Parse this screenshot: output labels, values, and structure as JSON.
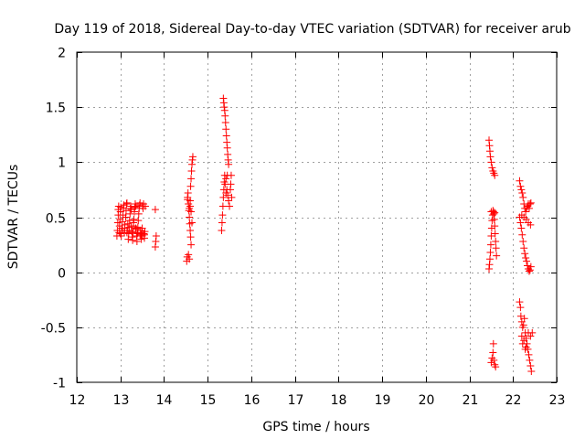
{
  "chart_data": {
    "type": "scatter",
    "title": "Day 119 of 2018, Sidereal Day-to-day VTEC variation (SDTVAR) for receiver arub",
    "xlabel": "GPS time / hours",
    "ylabel": "SDTVAR / TECUs",
    "xlim": [
      12,
      23
    ],
    "ylim": [
      -1,
      2
    ],
    "xticks": [
      12,
      13,
      14,
      15,
      16,
      17,
      18,
      19,
      20,
      21,
      22,
      23
    ],
    "xtick_labels": [
      "12",
      "13",
      "14",
      "15",
      "16",
      "17",
      "18",
      "19",
      "20",
      "21",
      "22",
      "23"
    ],
    "yticks": [
      -1,
      -0.5,
      0,
      0.5,
      1,
      1.5,
      2
    ],
    "ytick_labels": [
      "-1",
      "-0.5",
      "0",
      "0.5",
      "1",
      "1.5",
      "2"
    ],
    "grid": true,
    "marker": "+",
    "color": "#ff0000",
    "series": [
      {
        "name": "SDTVAR",
        "points": [
          [
            12.92,
            0.33
          ],
          [
            12.93,
            0.38
          ],
          [
            12.94,
            0.45
          ],
          [
            12.95,
            0.52
          ],
          [
            12.95,
            0.57
          ],
          [
            12.96,
            0.6
          ],
          [
            12.97,
            0.36
          ],
          [
            12.98,
            0.42
          ],
          [
            12.99,
            0.48
          ],
          [
            13.0,
            0.55
          ],
          [
            13.01,
            0.59
          ],
          [
            13.02,
            0.33
          ],
          [
            13.03,
            0.4
          ],
          [
            13.05,
            0.46
          ],
          [
            13.06,
            0.52
          ],
          [
            13.07,
            0.58
          ],
          [
            13.08,
            0.61
          ],
          [
            13.09,
            0.36
          ],
          [
            13.1,
            0.43
          ],
          [
            13.12,
            0.5
          ],
          [
            13.13,
            0.56
          ],
          [
            13.14,
            0.62
          ],
          [
            13.15,
            0.63
          ],
          [
            13.16,
            0.38
          ],
          [
            13.17,
            0.44
          ],
          [
            13.18,
            0.3
          ],
          [
            13.19,
            0.35
          ],
          [
            13.2,
            0.41
          ],
          [
            13.21,
            0.47
          ],
          [
            13.22,
            0.53
          ],
          [
            13.23,
            0.58
          ],
          [
            13.24,
            0.6
          ],
          [
            13.25,
            0.57
          ],
          [
            13.26,
            0.37
          ],
          [
            13.27,
            0.32
          ],
          [
            13.28,
            0.29
          ],
          [
            13.29,
            0.36
          ],
          [
            13.3,
            0.42
          ],
          [
            13.31,
            0.48
          ],
          [
            13.32,
            0.55
          ],
          [
            13.33,
            0.59
          ],
          [
            13.34,
            0.62
          ],
          [
            13.35,
            0.6
          ],
          [
            13.36,
            0.39
          ],
          [
            13.37,
            0.33
          ],
          [
            13.38,
            0.28
          ],
          [
            13.39,
            0.35
          ],
          [
            13.4,
            0.41
          ],
          [
            13.41,
            0.47
          ],
          [
            13.42,
            0.53
          ],
          [
            13.43,
            0.58
          ],
          [
            13.44,
            0.61
          ],
          [
            13.45,
            0.63
          ],
          [
            13.46,
            0.38
          ],
          [
            13.47,
            0.34
          ],
          [
            13.48,
            0.3
          ],
          [
            13.49,
            0.36
          ],
          [
            13.5,
            0.4
          ],
          [
            13.51,
            0.6
          ],
          [
            13.52,
            0.58
          ],
          [
            13.53,
            0.62
          ],
          [
            13.54,
            0.35
          ],
          [
            13.55,
            0.31
          ],
          [
            13.56,
            0.37
          ],
          [
            13.57,
            0.6
          ],
          [
            13.0,
            0.35
          ],
          [
            13.05,
            0.38
          ],
          [
            13.1,
            0.4
          ],
          [
            13.15,
            0.36
          ],
          [
            13.2,
            0.38
          ],
          [
            13.25,
            0.42
          ],
          [
            13.3,
            0.45
          ],
          [
            13.35,
            0.4
          ],
          [
            13.4,
            0.36
          ],
          [
            13.45,
            0.33
          ],
          [
            13.5,
            0.33
          ],
          [
            13.55,
            0.34
          ],
          [
            13.8,
            0.57
          ],
          [
            13.8,
            0.23
          ],
          [
            13.81,
            0.28
          ],
          [
            13.82,
            0.33
          ],
          [
            14.52,
            0.1
          ],
          [
            14.53,
            0.14
          ],
          [
            14.54,
            0.68
          ],
          [
            14.55,
            0.72
          ],
          [
            14.56,
            0.62
          ],
          [
            14.57,
            0.56
          ],
          [
            14.58,
            0.5
          ],
          [
            14.59,
            0.44
          ],
          [
            14.6,
            0.38
          ],
          [
            14.61,
            0.32
          ],
          [
            14.62,
            0.25
          ],
          [
            14.56,
            0.16
          ],
          [
            14.58,
            0.12
          ],
          [
            14.6,
            0.6
          ],
          [
            14.61,
            0.78
          ],
          [
            14.62,
            0.85
          ],
          [
            14.63,
            0.92
          ],
          [
            14.64,
            0.98
          ],
          [
            14.65,
            1.02
          ],
          [
            14.66,
            1.05
          ],
          [
            14.6,
            0.65
          ],
          [
            14.62,
            0.55
          ],
          [
            14.64,
            0.45
          ],
          [
            14.54,
            0.66
          ],
          [
            14.58,
            0.58
          ],
          [
            15.32,
            0.38
          ],
          [
            15.33,
            0.45
          ],
          [
            15.34,
            0.52
          ],
          [
            15.35,
            0.6
          ],
          [
            15.36,
            0.68
          ],
          [
            15.37,
            0.75
          ],
          [
            15.38,
            0.82
          ],
          [
            15.39,
            0.88
          ],
          [
            15.36,
            1.58
          ],
          [
            15.37,
            1.54
          ],
          [
            15.38,
            1.5
          ],
          [
            15.39,
            1.47
          ],
          [
            15.4,
            1.42
          ],
          [
            15.41,
            1.36
          ],
          [
            15.42,
            1.3
          ],
          [
            15.43,
            1.24
          ],
          [
            15.44,
            1.18
          ],
          [
            15.45,
            1.13
          ],
          [
            15.46,
            1.07
          ],
          [
            15.47,
            1.02
          ],
          [
            15.48,
            0.98
          ],
          [
            15.4,
            0.8
          ],
          [
            15.42,
            0.85
          ],
          [
            15.44,
            0.75
          ],
          [
            15.46,
            0.7
          ],
          [
            15.48,
            0.65
          ],
          [
            15.5,
            0.6
          ],
          [
            15.52,
            0.75
          ],
          [
            15.53,
            0.8
          ],
          [
            15.54,
            0.88
          ],
          [
            15.55,
            0.68
          ],
          [
            15.45,
            0.88
          ],
          [
            15.42,
            0.72
          ],
          [
            21.45,
            1.2
          ],
          [
            21.46,
            1.15
          ],
          [
            21.47,
            1.1
          ],
          [
            21.48,
            1.05
          ],
          [
            21.5,
            1.0
          ],
          [
            21.52,
            0.95
          ],
          [
            21.54,
            0.92
          ],
          [
            21.56,
            0.9
          ],
          [
            21.58,
            0.88
          ],
          [
            21.45,
            0.03
          ],
          [
            21.46,
            0.07
          ],
          [
            21.47,
            0.12
          ],
          [
            21.48,
            0.18
          ],
          [
            21.49,
            0.25
          ],
          [
            21.5,
            0.33
          ],
          [
            21.51,
            0.4
          ],
          [
            21.52,
            0.47
          ],
          [
            21.53,
            0.52
          ],
          [
            21.54,
            0.56
          ],
          [
            21.55,
            0.55
          ],
          [
            21.56,
            0.53
          ],
          [
            21.57,
            0.48
          ],
          [
            21.58,
            0.42
          ],
          [
            21.59,
            0.35
          ],
          [
            21.6,
            0.28
          ],
          [
            21.61,
            0.22
          ],
          [
            21.62,
            0.15
          ],
          [
            21.5,
            0.55
          ],
          [
            21.58,
            0.54
          ],
          [
            21.5,
            -0.82
          ],
          [
            21.52,
            -0.78
          ],
          [
            21.54,
            -0.73
          ],
          [
            21.55,
            -0.65
          ],
          [
            21.56,
            -0.8
          ],
          [
            21.58,
            -0.84
          ],
          [
            21.6,
            -0.86
          ],
          [
            22.15,
            0.83
          ],
          [
            22.17,
            0.78
          ],
          [
            22.19,
            0.75
          ],
          [
            22.21,
            0.72
          ],
          [
            22.23,
            0.68
          ],
          [
            22.25,
            0.62
          ],
          [
            22.27,
            0.58
          ],
          [
            22.29,
            0.55
          ],
          [
            22.31,
            0.58
          ],
          [
            22.33,
            0.6
          ],
          [
            22.35,
            0.62
          ],
          [
            22.37,
            0.58
          ],
          [
            22.39,
            0.62
          ],
          [
            22.41,
            0.63
          ],
          [
            22.15,
            0.5
          ],
          [
            22.17,
            0.45
          ],
          [
            22.19,
            0.4
          ],
          [
            22.21,
            0.34
          ],
          [
            22.23,
            0.28
          ],
          [
            22.25,
            0.22
          ],
          [
            22.27,
            0.17
          ],
          [
            22.29,
            0.13
          ],
          [
            22.31,
            0.1
          ],
          [
            22.33,
            0.06
          ],
          [
            22.35,
            0.03
          ],
          [
            22.37,
            0.01
          ],
          [
            22.39,
            0.02
          ],
          [
            22.41,
            0.05
          ],
          [
            22.2,
            0.52
          ],
          [
            22.25,
            0.5
          ],
          [
            22.3,
            0.48
          ],
          [
            22.35,
            0.45
          ],
          [
            22.4,
            0.43
          ],
          [
            22.15,
            -0.27
          ],
          [
            22.17,
            -0.32
          ],
          [
            22.18,
            -0.4
          ],
          [
            22.2,
            -0.45
          ],
          [
            22.22,
            -0.5
          ],
          [
            22.24,
            -0.48
          ],
          [
            22.26,
            -0.42
          ],
          [
            22.28,
            -0.55
          ],
          [
            22.3,
            -0.6
          ],
          [
            22.32,
            -0.65
          ],
          [
            22.34,
            -0.7
          ],
          [
            22.36,
            -0.75
          ],
          [
            22.38,
            -0.8
          ],
          [
            22.4,
            -0.85
          ],
          [
            22.42,
            -0.9
          ],
          [
            22.2,
            -0.58
          ],
          [
            22.25,
            -0.62
          ],
          [
            22.3,
            -0.68
          ],
          [
            22.35,
            -0.55
          ],
          [
            22.4,
            -0.58
          ],
          [
            22.44,
            -0.55
          ],
          [
            22.22,
            -0.65
          ],
          [
            22.28,
            -0.7
          ]
        ]
      }
    ]
  }
}
